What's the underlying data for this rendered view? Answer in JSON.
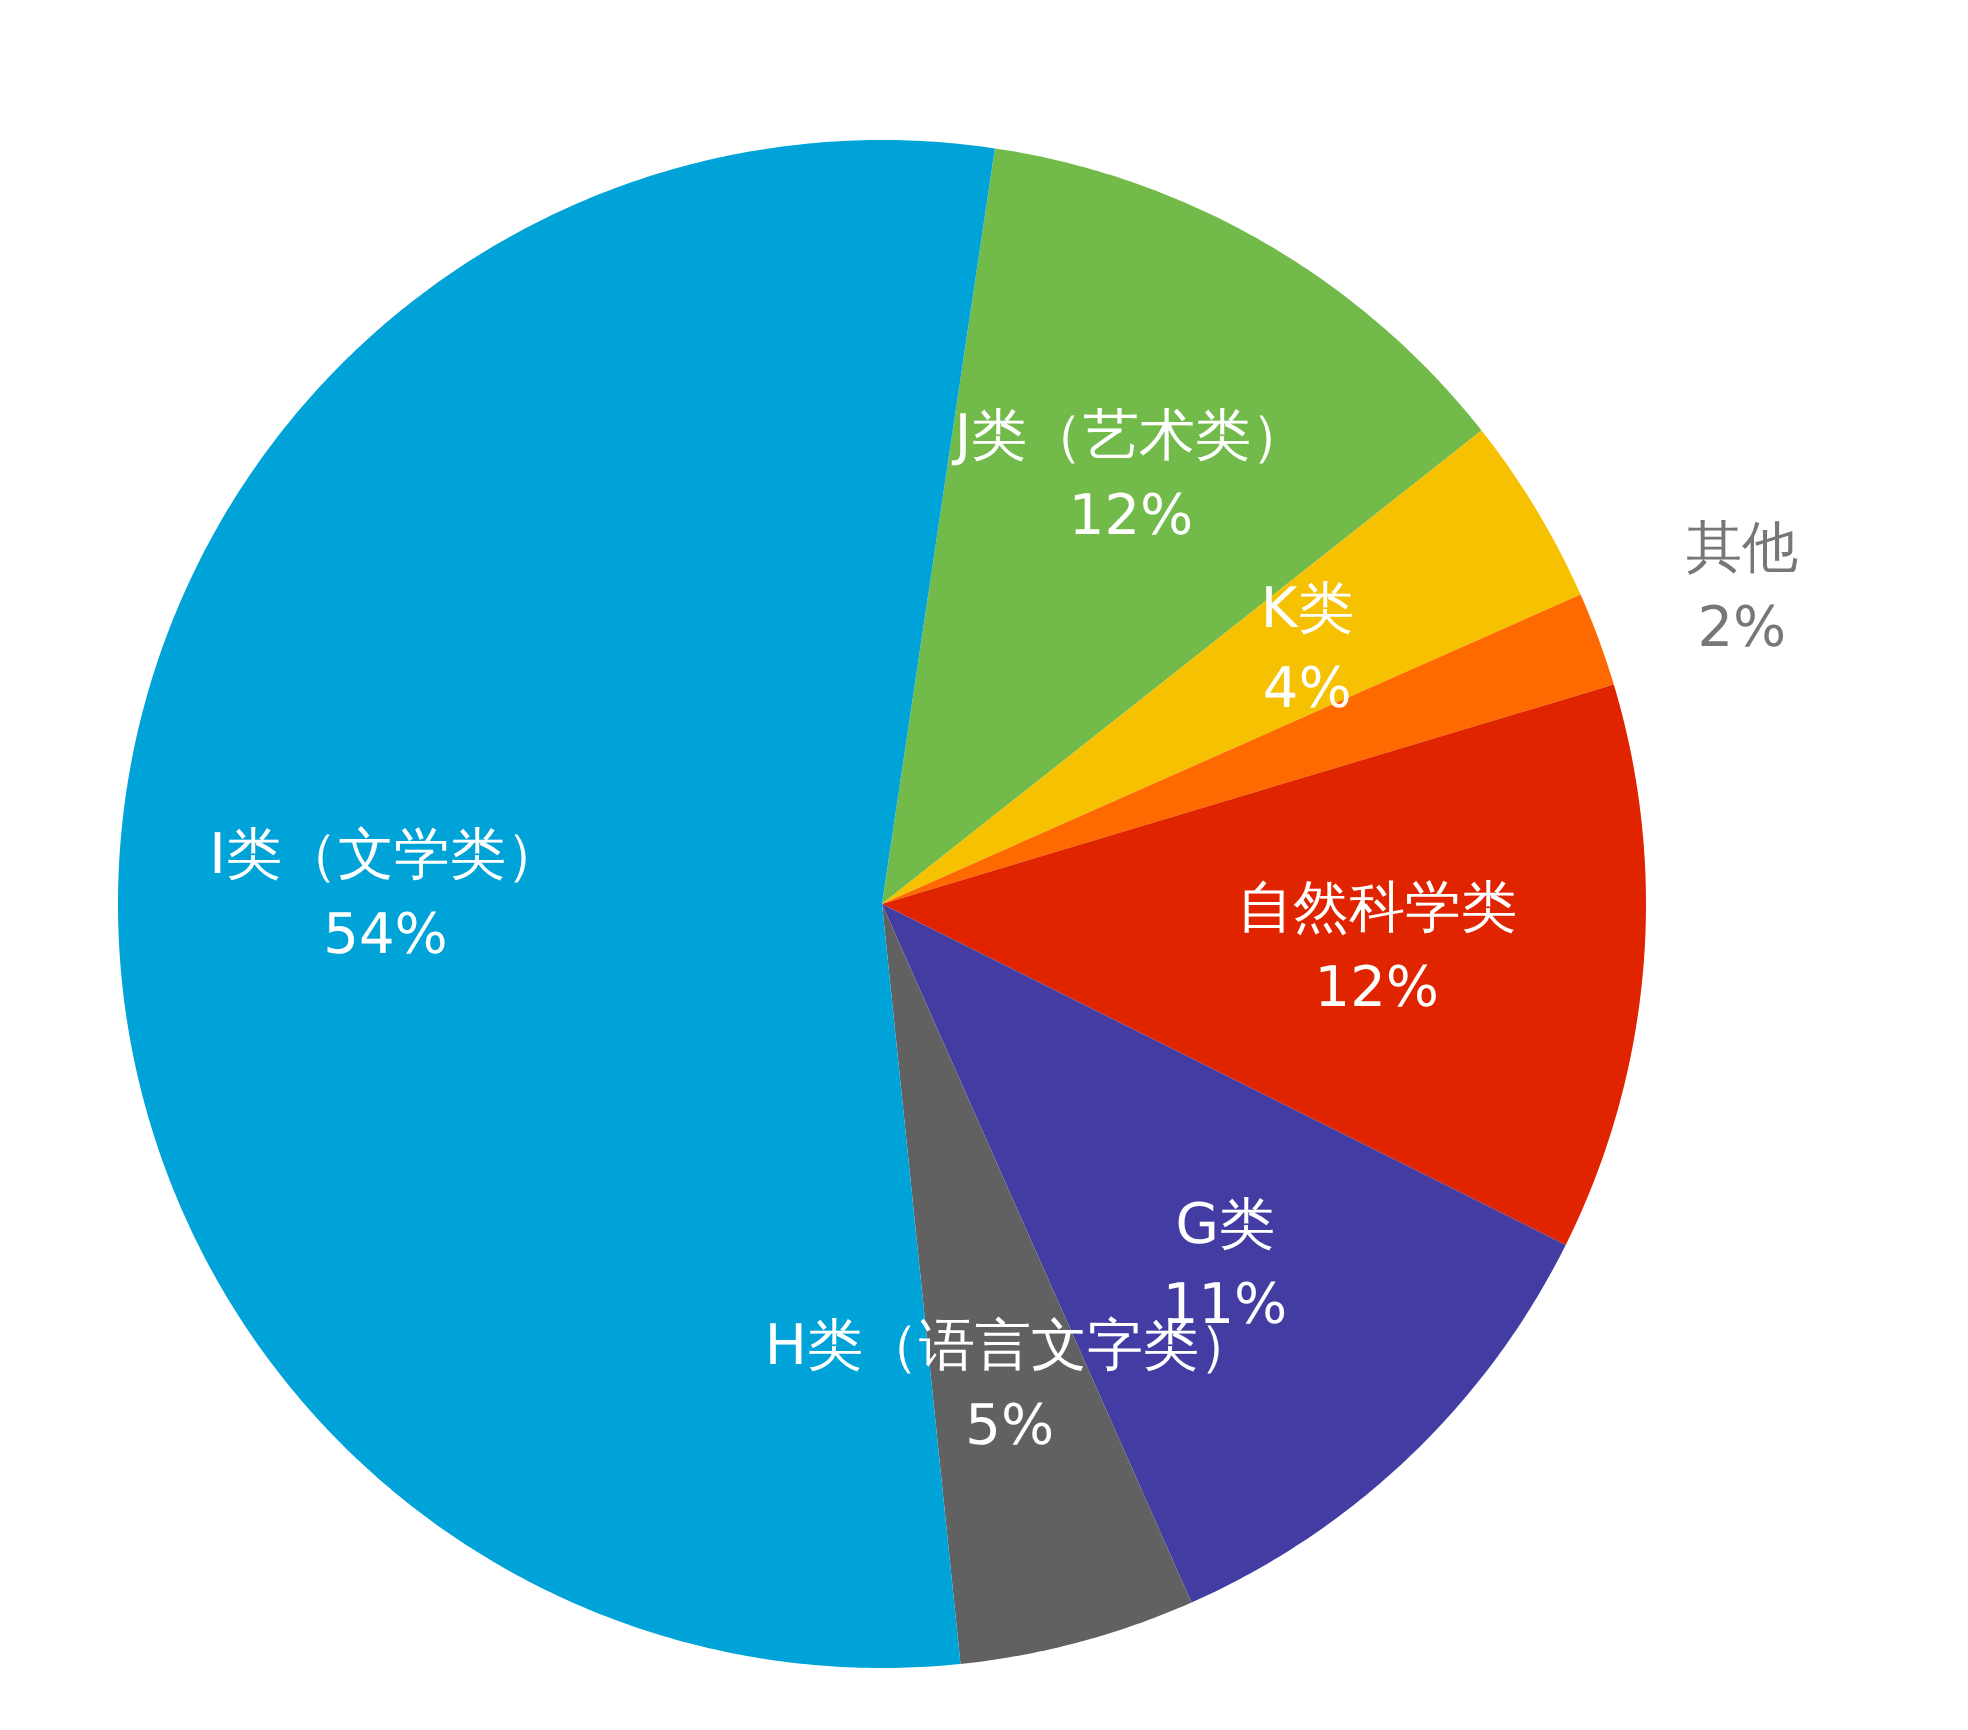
{
  "chart_data": {
    "type": "pie",
    "categories": [
      "J类（艺术类）",
      "K类",
      "其他",
      "自然科学类",
      "G类",
      "H类（语言文字类）",
      "I类（文学类）"
    ],
    "values": [
      12,
      4,
      2,
      12,
      11,
      5,
      54
    ],
    "colors": [
      "#72bb4a",
      "#f5c100",
      "#ff6a00",
      "#e02400",
      "#433da3",
      "#616161",
      "#00a3d8"
    ],
    "value_labels": [
      "12%",
      "4%",
      "2%",
      "12%",
      "11%",
      "5%",
      "54%"
    ],
    "legend": false
  }
}
